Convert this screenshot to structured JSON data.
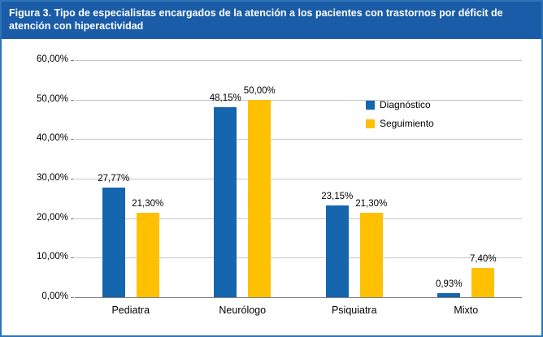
{
  "figure": {
    "title": "Figura 3. Tipo de especialistas encargados de la atención a los pacientes con trastornos por déficit de atención con hiperactividad"
  },
  "colors": {
    "header_bg": "#1A5CA8",
    "figure_border": "#2E75B6",
    "diagnostico_blue": "#1565AF",
    "seguimiento_yellow": "#FFC000",
    "gridline": "#C6C6C6",
    "axis": "#808080",
    "text": "#000000"
  },
  "chart_data": {
    "type": "bar",
    "title": "Figura 3. Tipo de especialistas encargados de la atención a los pacientes con trastornos por déficit de atención con hiperactividad",
    "categories": [
      "Pediatra",
      "Neurólogo",
      "Psiquiatra",
      "Mixto"
    ],
    "series": [
      {
        "name": "Diagnóstico",
        "color_key": "diagnostico_blue",
        "values": [
          27.77,
          48.15,
          23.15,
          0.93
        ],
        "labels": [
          "27,77%",
          "48,15%",
          "23,15%",
          "0,93%"
        ]
      },
      {
        "name": "Seguimiento",
        "color_key": "seguimiento_yellow",
        "values": [
          21.3,
          50.0,
          21.3,
          7.4
        ],
        "labels": [
          "21,30%",
          "50,00%",
          "21,30%",
          "7,40%"
        ]
      }
    ],
    "ylim": [
      0,
      60
    ],
    "ytick_step": 10,
    "ytick_labels": [
      "0,00%",
      "10,00%",
      "20,00%",
      "30,00%",
      "40,00%",
      "50,00%",
      "60,00%"
    ],
    "grid": true,
    "legend_position": "inside-right"
  }
}
